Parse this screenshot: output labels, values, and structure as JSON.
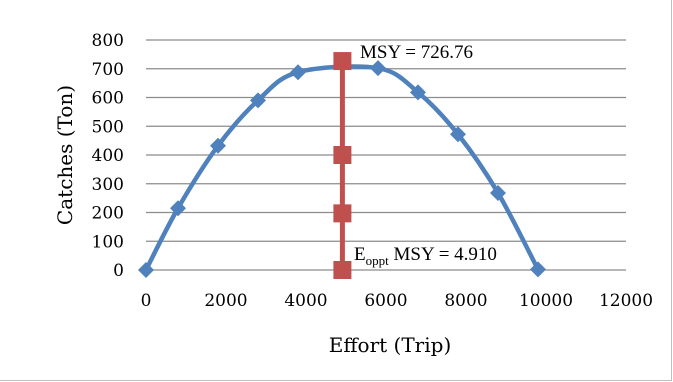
{
  "chart_data": {
    "type": "line",
    "xlabel": "Effort (Trip)",
    "ylabel": "Catches (Ton)",
    "xlim": [
      0,
      12000
    ],
    "ylim": [
      0,
      800
    ],
    "x_ticks": [
      "0",
      "2000",
      "4000",
      "6000",
      "8000",
      "10000",
      "12000"
    ],
    "y_ticks": [
      "0",
      "100",
      "200",
      "300",
      "400",
      "500",
      "600",
      "700",
      "800"
    ],
    "grid": "horizontal",
    "series": [
      {
        "color": "#4f81bd",
        "marker": "diamond",
        "smooth": true,
        "points": [
          {
            "x": 0,
            "y": 0
          },
          {
            "x": 800,
            "y": 215
          },
          {
            "x": 1800,
            "y": 432
          },
          {
            "x": 2800,
            "y": 590
          },
          {
            "x": 3800,
            "y": 688
          },
          {
            "x": 5800,
            "y": 702
          },
          {
            "x": 6800,
            "y": 618
          },
          {
            "x": 7800,
            "y": 472
          },
          {
            "x": 8800,
            "y": 268
          },
          {
            "x": 9800,
            "y": 2
          }
        ]
      },
      {
        "color": "#c0504d",
        "marker": "square",
        "smooth": false,
        "points": [
          {
            "x": 4910,
            "y": 726.76
          },
          {
            "x": 4910,
            "y": 400
          },
          {
            "x": 4910,
            "y": 197
          },
          {
            "x": 4910,
            "y": 0
          }
        ]
      }
    ],
    "annotations": {
      "msy": "MSY = 726.76",
      "eoppt_main": "E",
      "eoppt_sub": "oppt",
      "eoppt_rest": " MSY = 4.910"
    }
  }
}
